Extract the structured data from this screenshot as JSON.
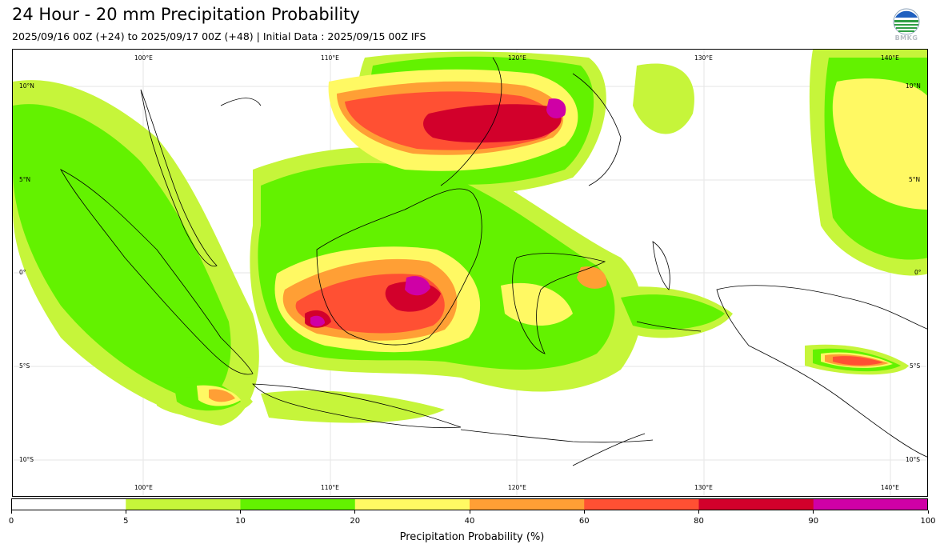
{
  "title": "24 Hour - 20 mm Precipitation Probability",
  "subtitle": "2025/09/16 00Z (+24) to 2025/09/17 00Z (+48) | Initial Data : 2025/09/15 00Z IFS",
  "logo": {
    "text": "BMKG"
  },
  "map": {
    "lon_labels": [
      "100°E",
      "110°E",
      "120°E",
      "130°E",
      "140°E"
    ],
    "lat_labels_left": [
      "10°N",
      "5°N",
      "0°",
      "5°S",
      "10°S"
    ],
    "lat_labels_right": [
      "10°N",
      "5°N",
      "0°",
      "5°S",
      "10°S"
    ]
  },
  "colorbar": {
    "label": "Precipitation Probability (%)",
    "ticks": [
      "0",
      "5",
      "10",
      "20",
      "40",
      "60",
      "80",
      "90",
      "100"
    ],
    "colors": [
      "#ffffff",
      "#c6f53a",
      "#63f200",
      "#fff963",
      "#ff9f35",
      "#ff5033",
      "#d2002b",
      "#cf00a6"
    ]
  },
  "chart_data": {
    "type": "heatmap",
    "title": "24 Hour - 20 mm Precipitation Probability",
    "xlabel": "",
    "ylabel": "",
    "colorbar_label": "Precipitation Probability (%)",
    "bins": [
      0,
      5,
      10,
      20,
      40,
      60,
      80,
      90,
      100
    ],
    "bin_colors": [
      "#ffffff",
      "#c6f53a",
      "#63f200",
      "#fff963",
      "#ff9f35",
      "#ff5033",
      "#d2002b",
      "#cf00a6"
    ],
    "xlim": [
      93,
      142
    ],
    "ylim": [
      -12,
      12
    ]
  }
}
